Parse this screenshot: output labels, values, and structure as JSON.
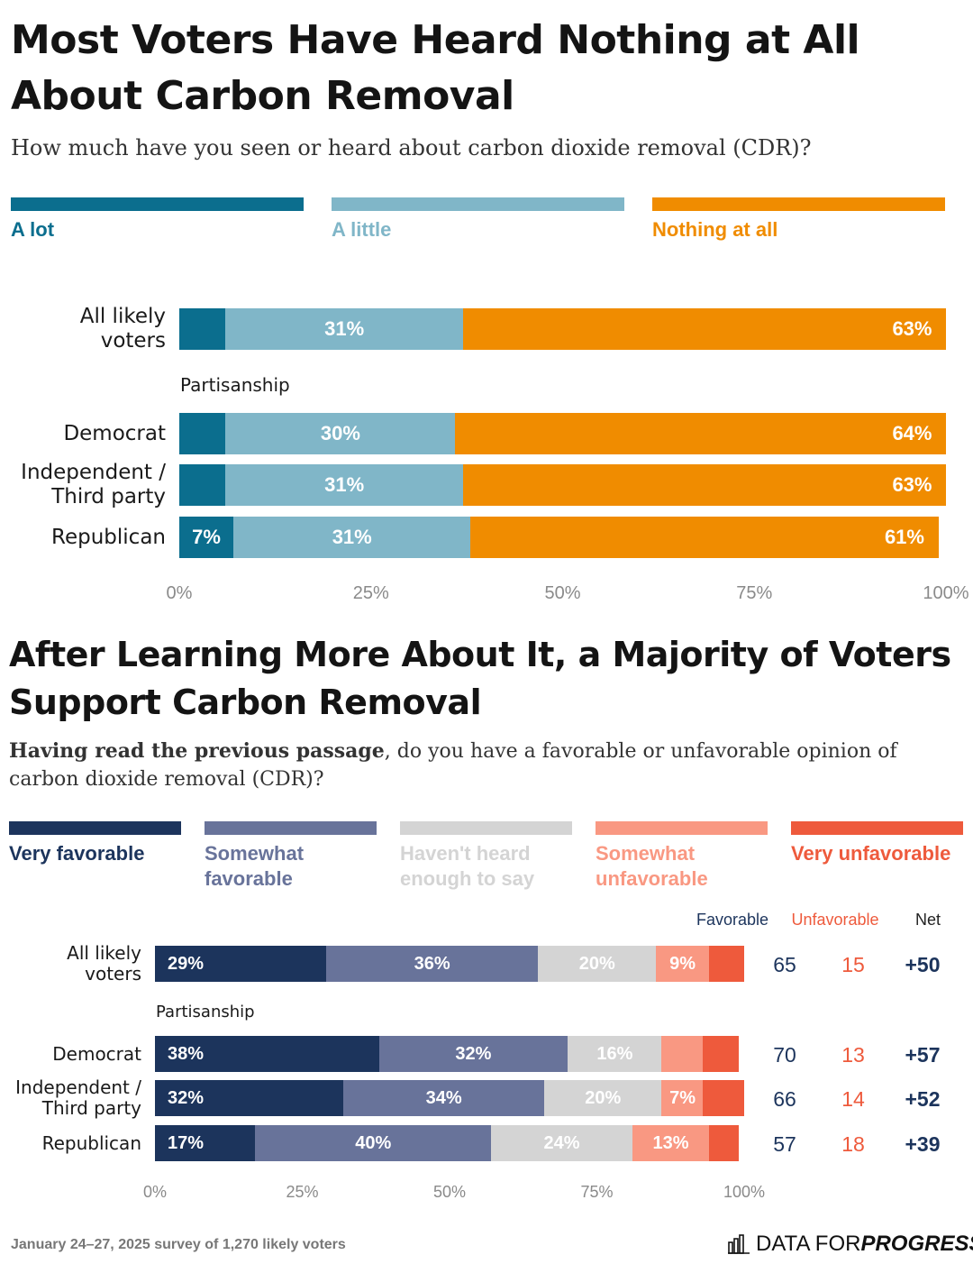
{
  "colors": {
    "a_lot": "#0b6e8e",
    "a_little": "#80b6c8",
    "nothing": "#f08c00",
    "very_fav": "#1c345c",
    "some_fav": "#68739a",
    "not_enough": "#d4d4d4",
    "some_unfav": "#f99882",
    "very_unfav": "#ee5a3c"
  },
  "chart1": {
    "title": "Most Voters Have Heard Nothing at All About Carbon Removal",
    "subtitle": "How much have you seen or heard about carbon dioxide removal (CDR)?"
  },
  "chart2": {
    "title": "After Learning More About It, a Majority of Voters Support Carbon Removal",
    "subtitle_bold": "Having read the previous passage",
    "subtitle_rest": ", do you have a favorable or unfavorable opinion of carbon dioxide removal (CDR)?",
    "col_headers": {
      "favorable": "Favorable",
      "unfavorable": "Unfavorable",
      "net": "Net"
    },
    "stats": [
      {
        "favorable": "65",
        "unfavorable": "15",
        "net": "+50"
      },
      {
        "favorable": "70",
        "unfavorable": "13",
        "net": "+57"
      },
      {
        "favorable": "66",
        "unfavorable": "14",
        "net": "+52"
      },
      {
        "favorable": "57",
        "unfavorable": "18",
        "net": "+39"
      }
    ]
  },
  "footer": {
    "source": "January 24–27, 2025 survey of 1,270 likely voters",
    "brand_light": "DATA FOR ",
    "brand_bold": "PROGRESS"
  },
  "chart_data": [
    {
      "type": "bar",
      "orientation": "horizontal-stacked",
      "title": "Most Voters Have Heard Nothing at All About Carbon Removal",
      "subtitle": "How much have you seen or heard about carbon dioxide removal (CDR)?",
      "group_label": "Partisanship",
      "categories": [
        "All likely voters",
        "Democrat",
        "Independent / Third party",
        "Republican"
      ],
      "series": [
        {
          "name": "A lot",
          "values": [
            6,
            6,
            6,
            7
          ],
          "labels": [
            "",
            "",
            "",
            "7%"
          ]
        },
        {
          "name": "A little",
          "values": [
            31,
            30,
            31,
            31
          ],
          "labels": [
            "31%",
            "30%",
            "31%",
            "31%"
          ]
        },
        {
          "name": "Nothing at all",
          "values": [
            63,
            64,
            63,
            61
          ],
          "labels": [
            "63%",
            "64%",
            "63%",
            "61%"
          ]
        }
      ],
      "xlim": [
        0,
        100
      ],
      "xticks": [
        "0%",
        "25%",
        "50%",
        "75%",
        "100%"
      ],
      "legend": "top"
    },
    {
      "type": "bar",
      "orientation": "horizontal-stacked",
      "title": "After Learning More About It, a Majority of Voters Support Carbon Removal",
      "group_label": "Partisanship",
      "categories": [
        "All likely voters",
        "Democrat",
        "Independent / Third party",
        "Republican"
      ],
      "series": [
        {
          "name": "Very favorable",
          "values": [
            29,
            38,
            32,
            17
          ],
          "labels": [
            "29%",
            "38%",
            "32%",
            "17%"
          ]
        },
        {
          "name": "Somewhat favorable",
          "values": [
            36,
            32,
            34,
            40
          ],
          "labels": [
            "36%",
            "32%",
            "34%",
            "40%"
          ]
        },
        {
          "name": "Haven't heard enough to say",
          "values": [
            20,
            16,
            20,
            24
          ],
          "labels": [
            "20%",
            "16%",
            "20%",
            "24%"
          ]
        },
        {
          "name": "Somewhat unfavorable",
          "values": [
            9,
            7,
            7,
            13
          ],
          "labels": [
            "9%",
            "",
            "7%",
            "13%"
          ]
        },
        {
          "name": "Very unfavorable",
          "values": [
            6,
            6,
            7,
            5
          ],
          "labels": [
            "",
            "",
            "",
            ""
          ]
        }
      ],
      "xlim": [
        0,
        100
      ],
      "xticks": [
        "0%",
        "25%",
        "50%",
        "75%",
        "100%"
      ],
      "legend": "top"
    }
  ]
}
